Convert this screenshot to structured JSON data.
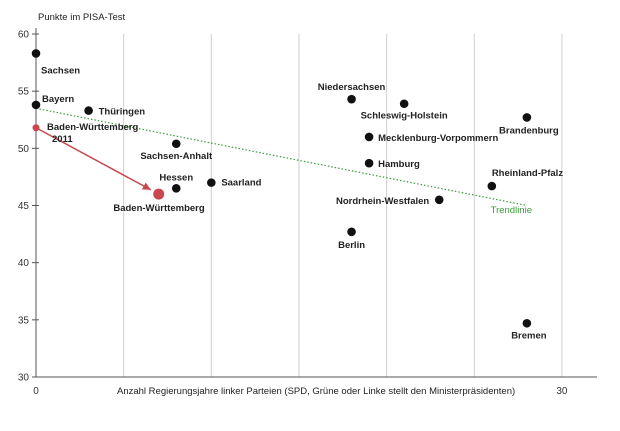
{
  "chart_data": {
    "type": "scatter",
    "ylabel": "Punkte im PISA-Test",
    "xlabel": "Anzahl Regierungsjahre linker Parteien (SPD, Grüne oder Linke stellt den Ministerpräsidenten)",
    "xlim": [
      0,
      32
    ],
    "ylim": [
      30,
      60
    ],
    "x_ticks": [
      0,
      30
    ],
    "y_ticks": [
      30,
      35,
      40,
      45,
      50,
      55,
      60
    ],
    "grid": "vertical",
    "points": [
      {
        "label": "Sachsen",
        "x": 0,
        "y": 58.3
      },
      {
        "label": "Bayern",
        "x": 0,
        "y": 53.8
      },
      {
        "label": "Thüringen",
        "x": 3,
        "y": 53.3
      },
      {
        "label": "Sachsen-Anhalt",
        "x": 8,
        "y": 50.4
      },
      {
        "label": "Hessen",
        "x": 8,
        "y": 46.5
      },
      {
        "label": "Saarland",
        "x": 10,
        "y": 47.0
      },
      {
        "label": "Niedersachsen",
        "x": 18,
        "y": 54.3
      },
      {
        "label": "Schleswig-Holstein",
        "x": 21,
        "y": 53.9
      },
      {
        "label": "Mecklenburg-Vorpommern",
        "x": 19,
        "y": 51.0
      },
      {
        "label": "Hamburg",
        "x": 19,
        "y": 48.7
      },
      {
        "label": "Nordrhein-Westfalen",
        "x": 23,
        "y": 45.5
      },
      {
        "label": "Berlin",
        "x": 18,
        "y": 42.7
      },
      {
        "label": "Brandenburg",
        "x": 28,
        "y": 52.7
      },
      {
        "label": "Rheinland-Pfalz",
        "x": 26,
        "y": 46.7
      },
      {
        "label": "Bremen",
        "x": 28,
        "y": 34.7
      }
    ],
    "highlight": {
      "start": {
        "label": "Baden-Württemberg 2011",
        "x": 0,
        "y": 51.8
      },
      "end": {
        "label": "Baden-Württemberg",
        "x": 7,
        "y": 46.0
      },
      "color": "#c9474f"
    },
    "trendline": {
      "label": "Trendlinie",
      "color": "#3a9a3a",
      "x": [
        0,
        28
      ],
      "y": [
        53.5,
        45.0
      ]
    }
  }
}
